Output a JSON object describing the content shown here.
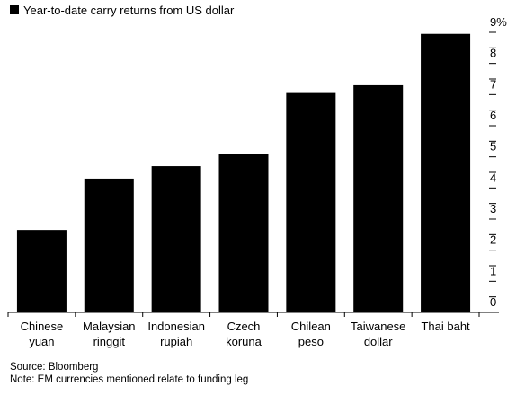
{
  "chart_data": {
    "type": "bar",
    "categories": [
      [
        "Chinese",
        "yuan"
      ],
      [
        "Malaysian",
        "ringgit"
      ],
      [
        "Indonesian",
        "rupiah"
      ],
      [
        "Czech",
        "koruna"
      ],
      [
        "Chilean",
        "peso"
      ],
      [
        "Taiwanese",
        "dollar"
      ],
      [
        "Thai baht"
      ]
    ],
    "series": [
      {
        "name": "Year-to-date carry returns from US dollar",
        "values": [
          2.65,
          4.3,
          4.7,
          5.1,
          7.05,
          7.3,
          8.95
        ],
        "color": "#000000"
      }
    ],
    "ylim": [
      0,
      9
    ],
    "yticks": [
      0,
      1,
      2,
      3,
      4,
      5,
      6,
      7,
      8,
      9
    ],
    "ytick_labels": [
      "0",
      "1",
      "2",
      "3",
      "4",
      "5",
      "6",
      "7",
      "8",
      "9%"
    ],
    "legend_position": "top-left",
    "grid": false,
    "axis_side": "right"
  },
  "footer": {
    "source": "Source: Bloomberg",
    "note": "Note: EM currencies mentioned relate to funding leg"
  }
}
